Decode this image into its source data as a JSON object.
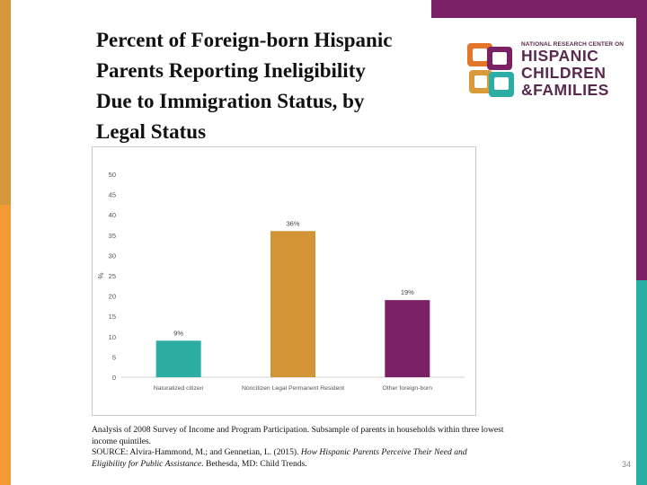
{
  "title_lines": [
    "Percent of Foreign-born Hispanic",
    "Parents Reporting Ineligibility",
    "Due to Immigration Status, by",
    "Legal Status"
  ],
  "logo": {
    "line1": "NATIONAL RESEARCH CENTER ON",
    "line2": "HISPANIC",
    "line3": "CHILDREN",
    "line4": "&FAMILIES"
  },
  "chart_data": {
    "type": "bar",
    "title": "Percent of Foreign-born Hispanic Parents Reporting Ineligibility Due to Immigration Status, by Legal Status",
    "categories": [
      "Naturalized citizen",
      "Noncitizen Legal Permanent Resident",
      "Other foreign-born"
    ],
    "values": [
      9,
      36,
      19
    ],
    "value_labels": [
      "9%",
      "36%",
      "19%"
    ],
    "colors": [
      "#2bada3",
      "#d29434",
      "#7b2166"
    ],
    "xlabel": "",
    "ylabel": "%",
    "ylim": [
      0,
      50
    ],
    "yticks": [
      0,
      5,
      10,
      15,
      20,
      25,
      30,
      35,
      40,
      45,
      50
    ],
    "grid": false
  },
  "note": {
    "line1": "Analysis of 2008 Survey of Income and Program Participation. Subsample of parents in households within three lowest",
    "line2": "income quintiles.",
    "line3": "SOURCE: Alvira-Hammond, M.; and Gennetian, L. (2015). ",
    "line3_italic": "How Hispanic Parents Perceive Their Need and",
    "line4_italic": "Eligibility for Public Assistance",
    "line4": ". Bethesda, MD: Child Trends."
  },
  "page_number": "34",
  "colors": {
    "orange": "#f29a36",
    "gold": "#d99a3a",
    "purple": "#7b2166",
    "teal": "#2bada3",
    "logo_text": "#5a2a4e"
  }
}
